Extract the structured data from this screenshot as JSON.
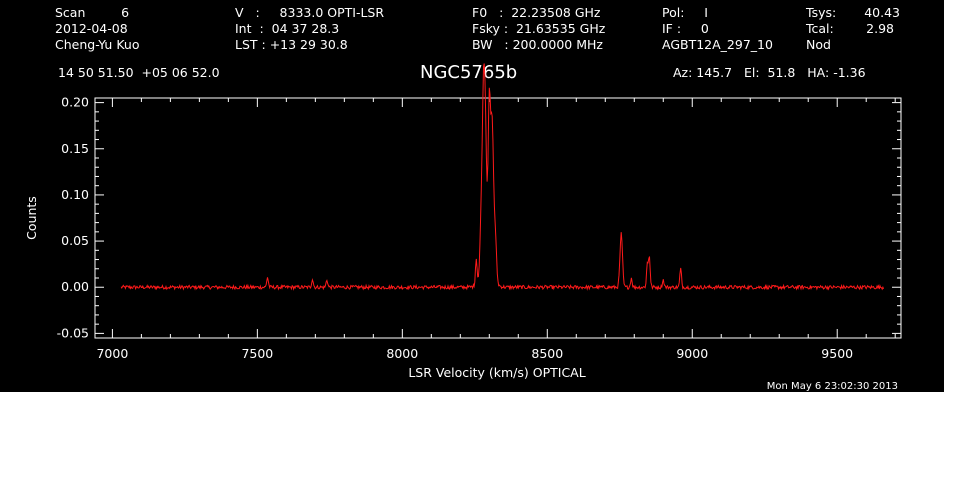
{
  "header": {
    "col1": [
      "Scan         6",
      "2012-04-08",
      "Cheng-Yu Kuo"
    ],
    "col2": [
      "V   :     8333.0 OPTI-LSR",
      "Int  :  04 37 28.3",
      "LST : +13 29 30.8"
    ],
    "col3": [
      "F0   :  22.23508 GHz",
      "Fsky :  21.63535 GHz",
      "BW   : 200.0000 MHz"
    ],
    "col4": [
      "Pol:     I",
      "IF :     0",
      "AGBT12A_297_10"
    ],
    "col5": [
      "Tsys:",
      "Tcal:",
      "Nod"
    ],
    "col6": [
      "40.43",
      "2.98",
      ""
    ],
    "coords": "14 50 51.50  +05 06 52.0",
    "object": "NGC5765b",
    "azel": "Az: 145.7   El:  51.8   HA: -1.36"
  },
  "timestamp": "Mon May  6 23:02:30 2013",
  "colors": {
    "background": "#000000",
    "axes": "#ffffff",
    "trace": "#ff1a1a"
  },
  "chart_data": {
    "type": "line",
    "xlabel": "LSR Velocity (km/s) OPTICAL",
    "ylabel": "Counts",
    "xlim": [
      6940,
      9720
    ],
    "ylim": [
      -0.055,
      0.205
    ],
    "xticks": [
      7000,
      7500,
      8000,
      8500,
      9000,
      9500
    ],
    "xtick_labels": [
      "7000",
      "7500",
      "8000",
      "8500",
      "9000",
      "9500"
    ],
    "yticks": [
      -0.05,
      0.0,
      0.05,
      0.1,
      0.15,
      0.2
    ],
    "ytick_labels": [
      "-0.05",
      "0.00",
      "0.05",
      "0.10",
      "0.15",
      "0.20"
    ],
    "x_range": [
      7030,
      9660
    ],
    "series": [
      {
        "peaks": [
          {
            "x": 7535,
            "y": 0.011
          },
          {
            "x": 7690,
            "y": 0.009
          },
          {
            "x": 7740,
            "y": 0.008
          },
          {
            "x": 8255,
            "y": 0.028
          },
          {
            "x": 8272,
            "y": 0.06
          },
          {
            "x": 8280,
            "y": 0.18
          },
          {
            "x": 8287,
            "y": 0.13
          },
          {
            "x": 8300,
            "y": 0.188
          },
          {
            "x": 8310,
            "y": 0.16
          },
          {
            "x": 8320,
            "y": 0.055
          },
          {
            "x": 8755,
            "y": 0.058
          },
          {
            "x": 8790,
            "y": 0.01
          },
          {
            "x": 8845,
            "y": 0.025
          },
          {
            "x": 8852,
            "y": 0.034
          },
          {
            "x": 8900,
            "y": 0.008
          },
          {
            "x": 8960,
            "y": 0.02
          }
        ]
      }
    ]
  }
}
